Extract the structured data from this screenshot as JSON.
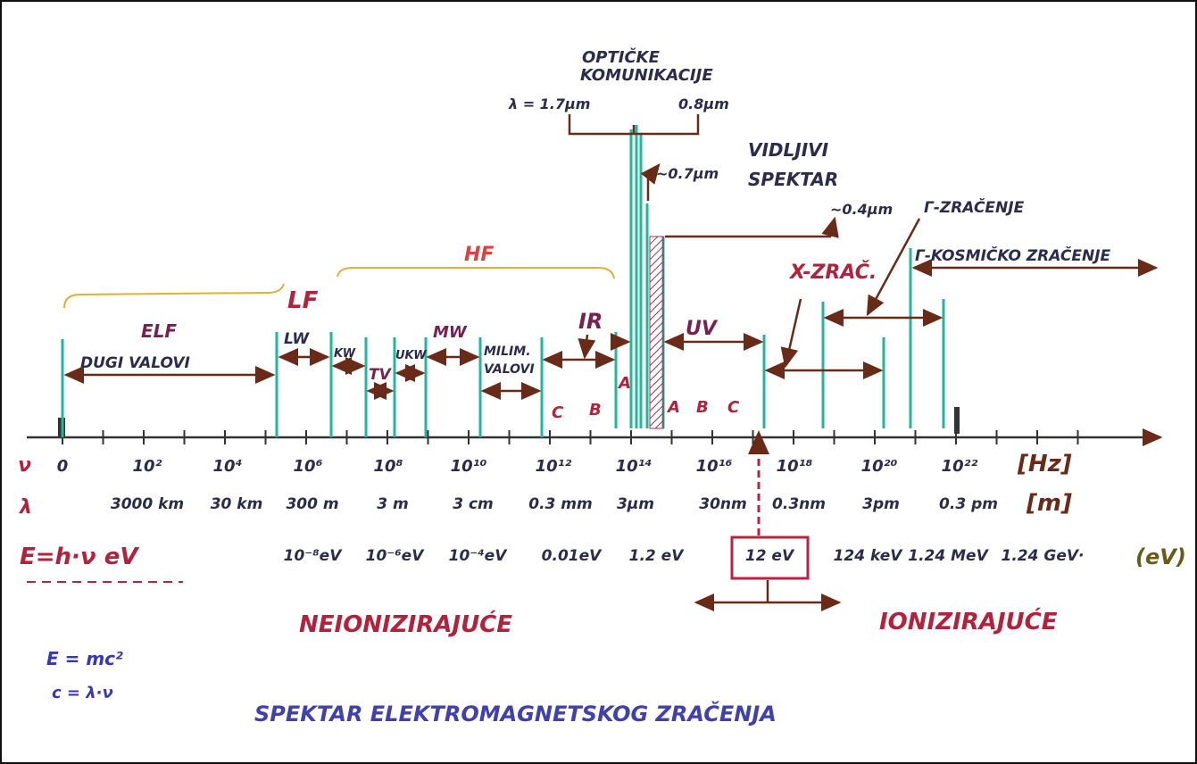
{
  "title": "SPEKTAR ELEKTROMAGNETSKOG ZRAČENJA",
  "optical": {
    "line_1": "OPTIČKE",
    "line_2": "KOMUNIKACIJE",
    "lambda_1": "λ = 1.7μm",
    "lambda_2": "0.8μm"
  },
  "visible": {
    "line_1": "VIDLJIVI",
    "line_2": "SPEKTAR",
    "lambda_1": "~0.7μm",
    "lambda_2": "~0.4μm"
  },
  "gamma": "Γ-ZRAČENJE",
  "cosmic": "Γ-KOSMIČKO ZRAČENJE",
  "xray": "X-ZRAČ.",
  "bands": {
    "lf": "LF",
    "hf": "HF",
    "elf": "ELF",
    "long_waves": "DUGI VALOVI",
    "lw": "LW",
    "kw": "KW",
    "tv": "TV",
    "ukw": "UKW",
    "mw": "MW",
    "mm_1": "MILIM.",
    "mm_2": "VALOVI",
    "ir": "IR",
    "uv": "UV",
    "ir_c": "C",
    "ir_b": "B",
    "ir_a": "A",
    "uv_a": "A",
    "uv_b": "B",
    "uv_c": "C"
  },
  "frequency_row": {
    "symbol": "ν",
    "ticks": [
      "0",
      "10²",
      "10⁴",
      "10⁶",
      "10⁸",
      "10¹⁰",
      "10¹²",
      "10¹⁴",
      "10¹⁶",
      "10¹⁸",
      "10²⁰",
      "10²²"
    ],
    "unit": "[Hz]"
  },
  "wavelength_row": {
    "symbol": "λ",
    "ticks": [
      "3000 km",
      "30 km",
      "300 m",
      "3 m",
      "3 cm",
      "0.3 mm",
      "3μm",
      "30nm",
      "0.3nm",
      "3pm",
      "0.3 pm"
    ],
    "unit": "[m]"
  },
  "energy_row": {
    "symbol": "E=h·ν eV",
    "ticks": [
      "10⁻⁸eV",
      "10⁻⁶eV",
      "10⁻⁴eV",
      "0.01eV",
      "1.2 eV",
      "12 eV",
      "124 keV",
      "1.24 MeV",
      "1.24 GeV·"
    ],
    "unit": "(eV)"
  },
  "non_ionizing": "NEIONIZIRAJUĆE",
  "ionizing": "IONIZIRAJUĆE",
  "formulas": [
    "E = mc²",
    "c = λ·ν"
  ]
}
